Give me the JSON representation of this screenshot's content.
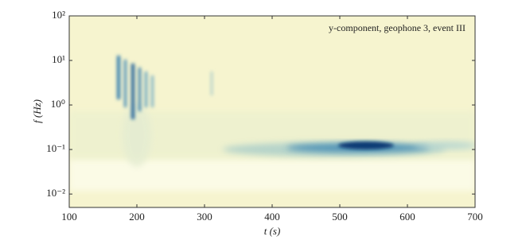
{
  "chart_data": {
    "type": "spectrogram",
    "annotation": "y-component, geophone 3, event III",
    "xlabel": "t (s)",
    "ylabel": "f (Hz)",
    "xlim": [
      100,
      700
    ],
    "xticks": [
      100,
      200,
      300,
      400,
      500,
      600,
      700
    ],
    "ylim": [
      0.005,
      100
    ],
    "log_y": true,
    "yticks": [
      {
        "value": 0.01,
        "label": "10⁻²"
      },
      {
        "value": 0.1,
        "label": "10⁻¹"
      },
      {
        "value": 1,
        "label": "10⁰"
      },
      {
        "value": 10,
        "label": "10¹"
      },
      {
        "value": 100,
        "label": "10²"
      }
    ],
    "background_color": "#f6f4cf",
    "color": "#0d4f8b"
  }
}
